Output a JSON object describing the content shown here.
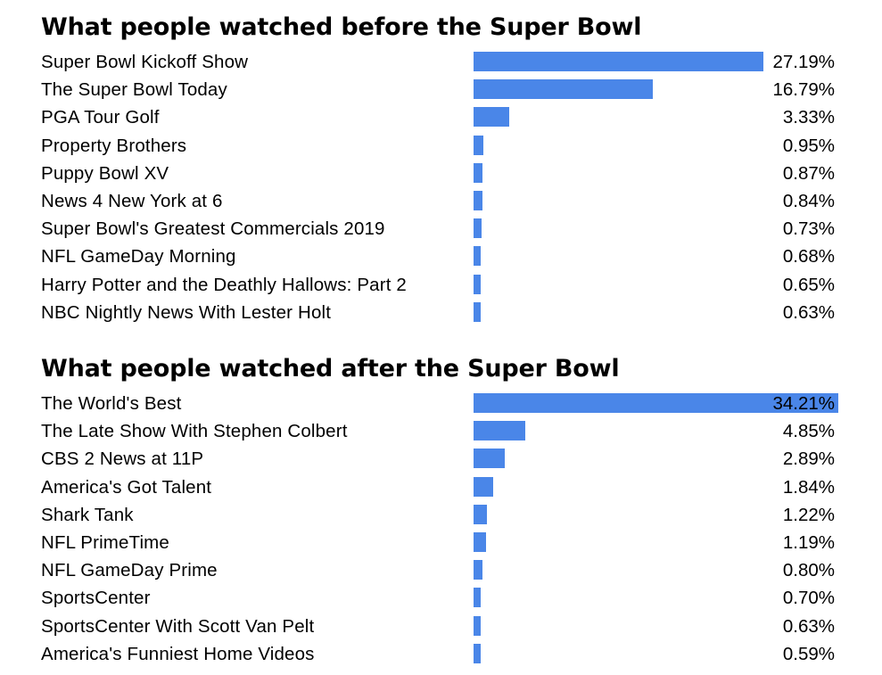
{
  "chart_data": [
    {
      "type": "bar",
      "orientation": "horizontal",
      "title": "What people watched before the Super Bowl",
      "categories": [
        "Super Bowl Kickoff Show",
        "The Super Bowl Today",
        "PGA Tour Golf",
        "Property Brothers",
        "Puppy Bowl XV",
        "News 4 New York at 6",
        "Super Bowl's Greatest Commercials 2019",
        "NFL GameDay Morning",
        "Harry Potter and the Deathly Hallows: Part 2",
        "NBC Nightly News With Lester Holt"
      ],
      "values": [
        27.19,
        16.79,
        3.33,
        0.95,
        0.87,
        0.84,
        0.73,
        0.68,
        0.65,
        0.63
      ],
      "value_labels": [
        "27.19%",
        "16.79%",
        "3.33%",
        "0.95%",
        "0.87%",
        "0.84%",
        "0.73%",
        "0.68%",
        "0.65%",
        "0.63%"
      ],
      "xlim": [
        0,
        34.21
      ],
      "grid": false,
      "bar_color": "#4a86e8"
    },
    {
      "type": "bar",
      "orientation": "horizontal",
      "title": "What people watched after the Super Bowl",
      "categories": [
        "The World's Best",
        "The Late Show With Stephen Colbert",
        "CBS 2 News at 11P",
        "America's Got Talent",
        "Shark Tank",
        "NFL PrimeTime",
        "NFL GameDay Prime",
        "SportsCenter",
        "SportsCenter With Scott Van Pelt",
        "America's Funniest Home Videos"
      ],
      "values": [
        34.21,
        4.85,
        2.89,
        1.84,
        1.22,
        1.19,
        0.8,
        0.7,
        0.63,
        0.59
      ],
      "value_labels": [
        "34.21%",
        "4.85%",
        "2.89%",
        "1.84%",
        "1.22%",
        "1.19%",
        "0.80%",
        "0.70%",
        "0.63%",
        "0.59%"
      ],
      "xlim": [
        0,
        34.21
      ],
      "grid": false,
      "bar_color": "#4a86e8"
    }
  ]
}
